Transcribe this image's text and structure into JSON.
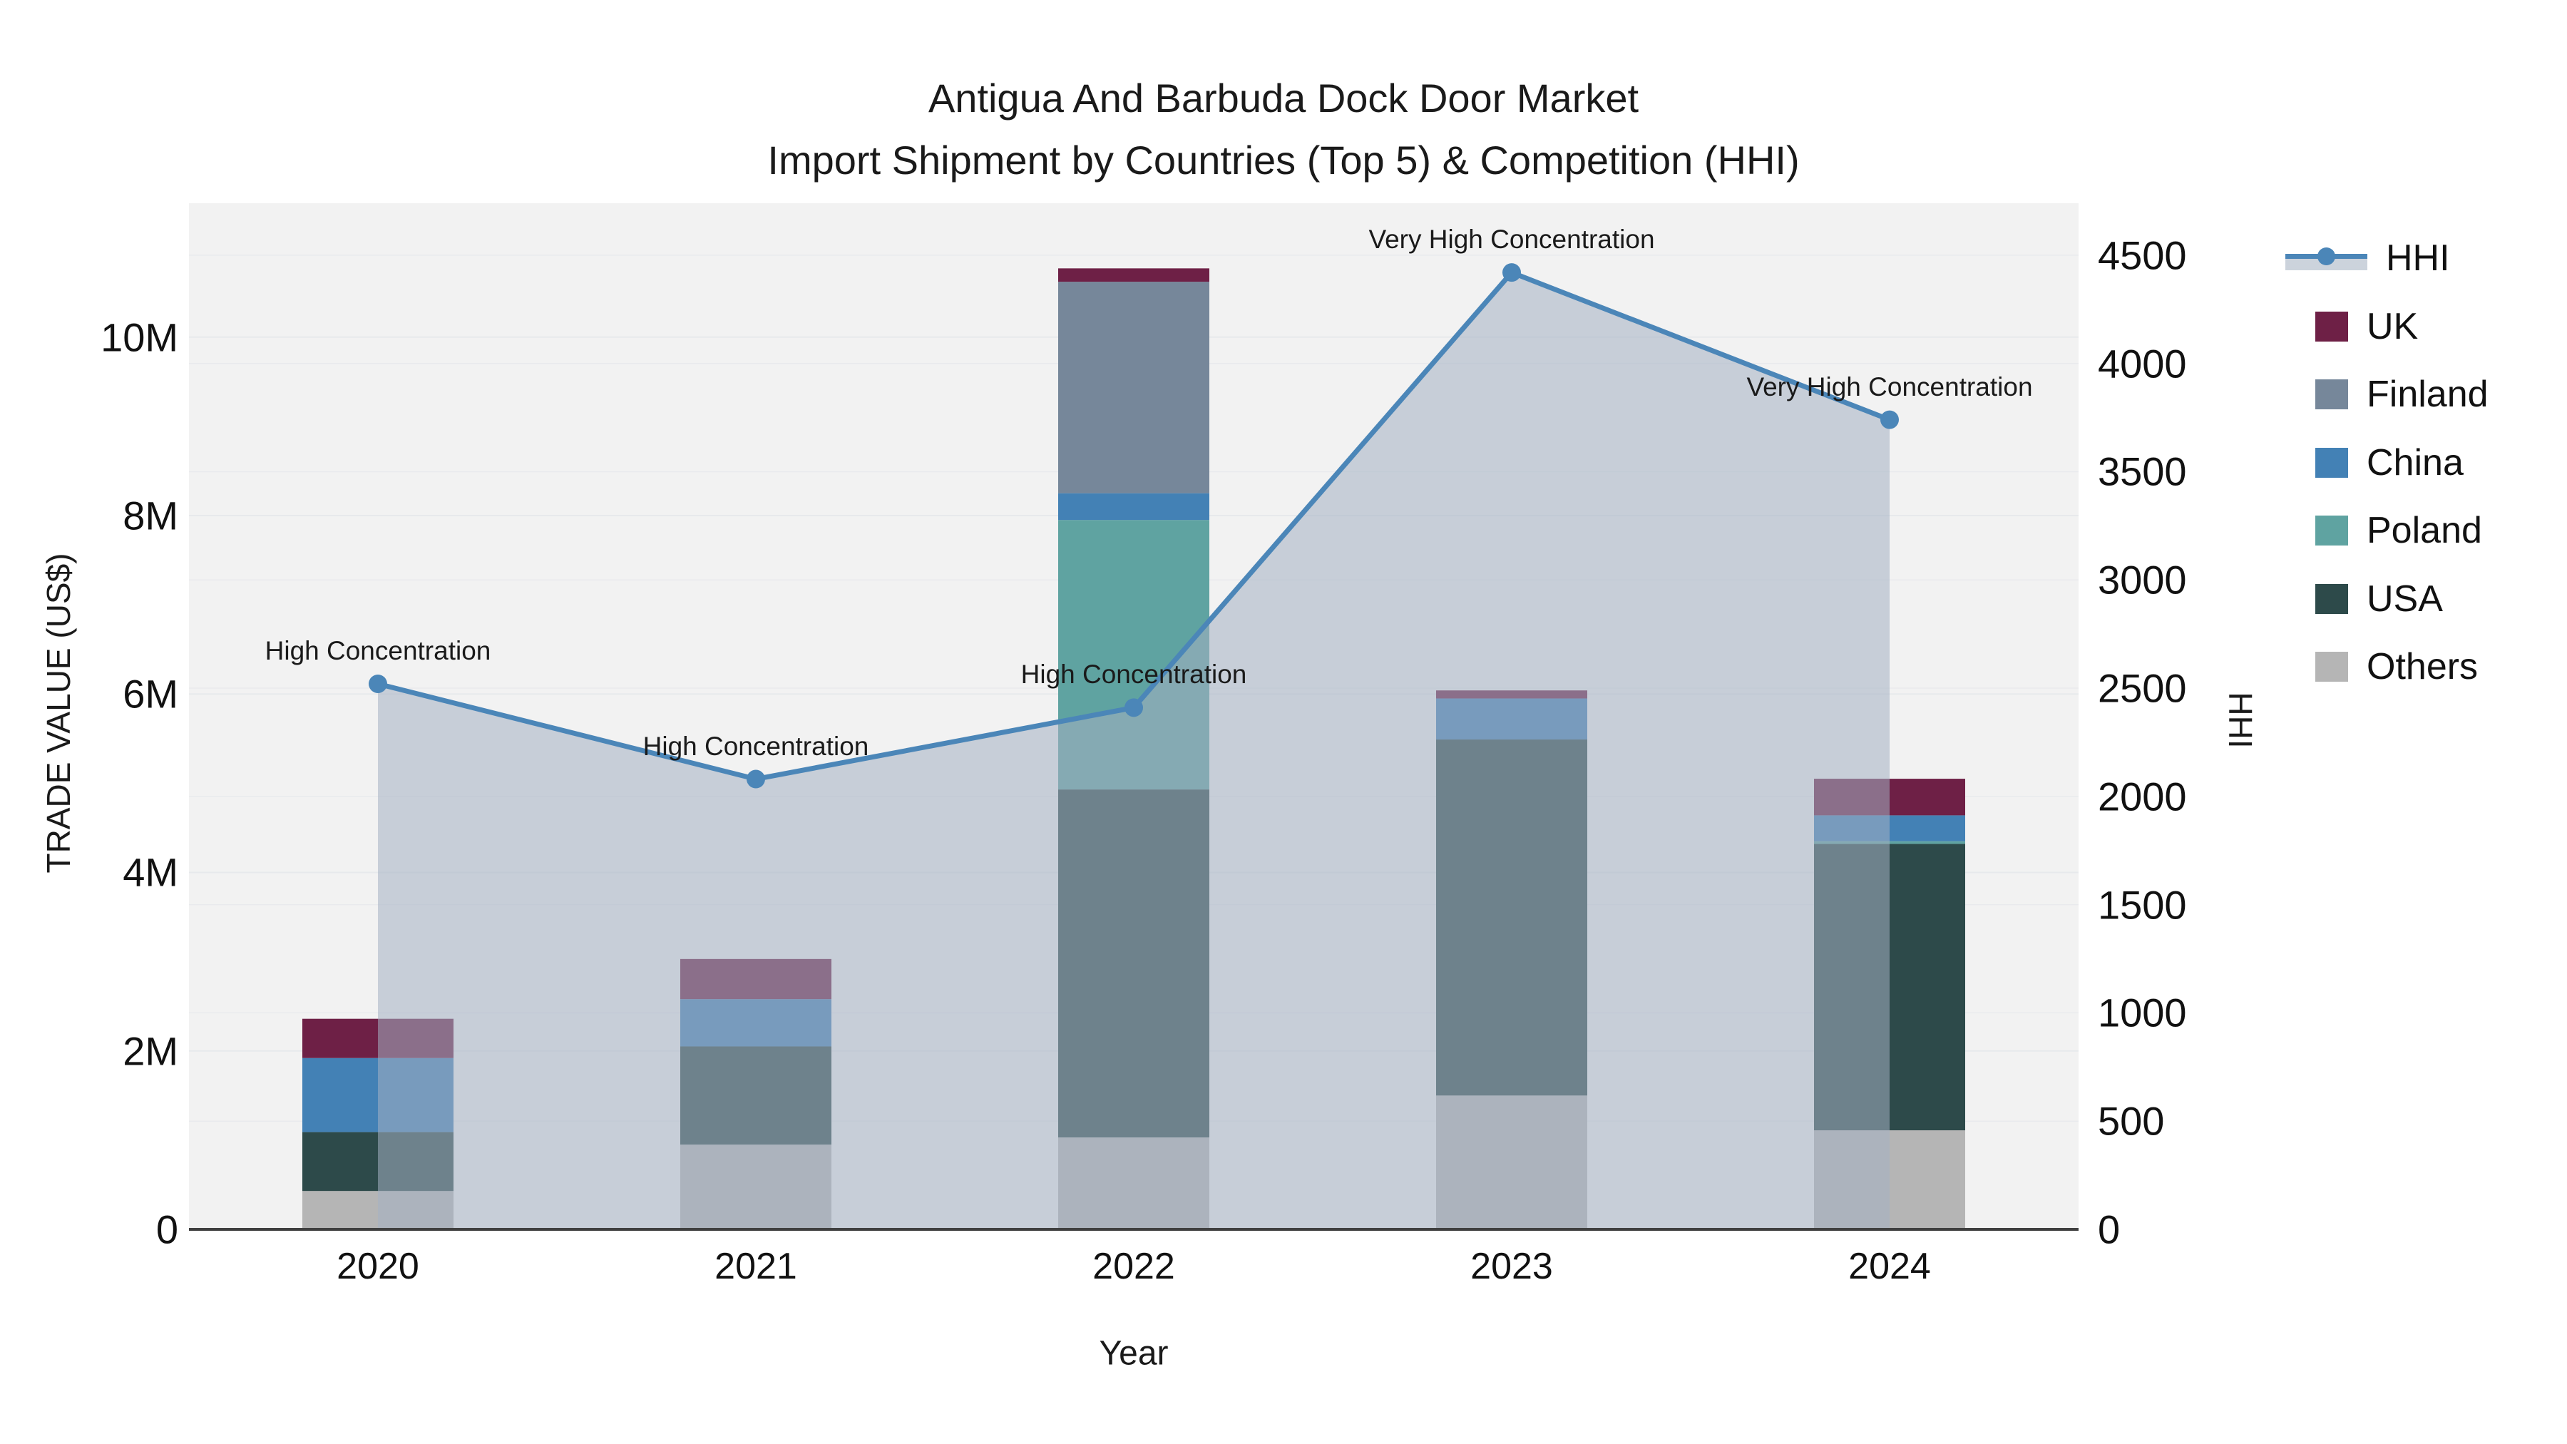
{
  "title": {
    "line1": "Antigua And Barbuda Dock Door Market",
    "line2": "Import Shipment by Countries (Top 5) & Competition (HHI)"
  },
  "chart_data": {
    "type": "bar+line",
    "title": "Antigua And Barbuda Dock Door Market Import Shipment by Countries (Top 5) & Competition (HHI)",
    "xlabel": "Year",
    "ylabel": "TRADE VALUE (US$)",
    "y2label": "HHI",
    "categories": [
      "2020",
      "2021",
      "2022",
      "2023",
      "2024"
    ],
    "stack_order": [
      "Others",
      "USA",
      "Poland",
      "China",
      "Finland",
      "UK"
    ],
    "series": [
      {
        "name": "UK",
        "color": "#6e2046",
        "values_usd_m": [
          0.44,
          0.45,
          0.15,
          0.09,
          0.41
        ]
      },
      {
        "name": "Finland",
        "color": "#76879a",
        "values_usd_m": [
          0,
          0,
          2.37,
          0,
          0
        ]
      },
      {
        "name": "China",
        "color": "#4381b5",
        "values_usd_m": [
          0.83,
          0.53,
          0.3,
          0.46,
          0.29
        ]
      },
      {
        "name": "Poland",
        "color": "#5fa3a1",
        "values_usd_m": [
          0,
          0,
          3.02,
          0,
          0.03
        ]
      },
      {
        "name": "USA",
        "color": "#2d4a4a",
        "values_usd_m": [
          0.66,
          1.1,
          3.9,
          3.99,
          3.21
        ]
      },
      {
        "name": "Others",
        "color": "#b5b5b5",
        "values_usd_m": [
          0.43,
          0.95,
          1.03,
          1.5,
          1.11
        ]
      }
    ],
    "hhi_line": {
      "name": "HHI",
      "color": "#4b86b8",
      "area_fill_color": "rgba(164,177,194,0.55)",
      "values": [
        2520,
        2080,
        2410,
        4420,
        3740
      ]
    },
    "annotations": [
      {
        "category": "2020",
        "text": "High Concentration"
      },
      {
        "category": "2021",
        "text": "High Concentration"
      },
      {
        "category": "2022",
        "text": "High Concentration"
      },
      {
        "category": "2023",
        "text": "Very High Concentration"
      },
      {
        "category": "2024",
        "text": "Very High Concentration"
      }
    ],
    "left_axis": {
      "ticks": [
        0,
        2,
        4,
        6,
        8,
        10
      ],
      "tick_labels": [
        "0",
        "2M",
        "4M",
        "6M",
        "8M",
        "10M"
      ],
      "range_usd_m": [
        0,
        11.5
      ],
      "grid": true
    },
    "right_axis": {
      "ticks": [
        0,
        500,
        1000,
        1500,
        2000,
        2500,
        3000,
        3500,
        4000,
        4500
      ],
      "tick_labels": [
        "0",
        "500",
        "1000",
        "1500",
        "2000",
        "2500",
        "3000",
        "3500",
        "4000",
        "4500"
      ],
      "range": [
        0,
        4740
      ],
      "grid": true
    },
    "legend": [
      "HHI",
      "UK",
      "Finland",
      "China",
      "Poland",
      "USA",
      "Others"
    ],
    "legend_position": "right",
    "plot_background": "#f2f2f2",
    "gridline_color": "#e7e9ec",
    "axis_line_color": "#3f3f3f"
  }
}
